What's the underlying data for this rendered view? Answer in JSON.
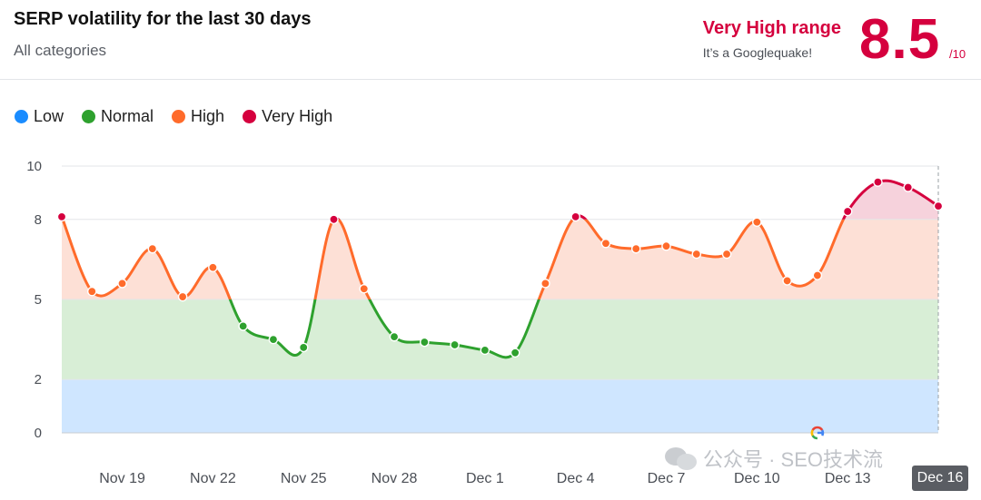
{
  "header": {
    "title": "SERP volatility for the last 30 days",
    "subtitle": "All categories",
    "range_label": "Very High range",
    "range_note": "It’s a Googlequake!",
    "score": "8.5",
    "score_max": "/10"
  },
  "legend": [
    {
      "label": "Low",
      "color": "#1a8cff"
    },
    {
      "label": "Normal",
      "color": "#2ea12e"
    },
    {
      "label": "High",
      "color": "#ff6b2b"
    },
    {
      "label": "Very High",
      "color": "#d5003e"
    }
  ],
  "colors": {
    "low_band": "#cfe6ff",
    "normal_band": "#d8eed6",
    "high_band": "#fde0d6",
    "very_high_band": "#f6d2dc",
    "grid": "#e3e5e8",
    "tick_text": "#4a4e55"
  },
  "chart_data": {
    "type": "line",
    "title": "SERP volatility for the last 30 days",
    "xlabel": "",
    "ylabel": "",
    "ylim": [
      0,
      10
    ],
    "y_ticks": [
      0,
      2,
      5,
      8,
      10
    ],
    "x_ticks": [
      "Nov 19",
      "Nov 22",
      "Nov 25",
      "Nov 28",
      "Dec 1",
      "Dec 4",
      "Dec 7",
      "Dec 10",
      "Dec 13"
    ],
    "x_tick_indices": [
      2,
      5,
      8,
      11,
      14,
      17,
      20,
      23,
      26
    ],
    "selected_date": "Dec 16",
    "bands": [
      {
        "name": "Low",
        "from": 0,
        "to": 2
      },
      {
        "name": "Normal",
        "from": 2,
        "to": 5
      },
      {
        "name": "High",
        "from": 5,
        "to": 8
      },
      {
        "name": "Very High",
        "from": 8,
        "to": 10
      }
    ],
    "series": [
      {
        "x": [
          "Nov 17",
          "Nov 18",
          "Nov 19",
          "Nov 20",
          "Nov 21",
          "Nov 22",
          "Nov 23",
          "Nov 24",
          "Nov 25",
          "Nov 26",
          "Nov 27",
          "Nov 28",
          "Nov 29",
          "Nov 30",
          "Dec 1",
          "Dec 2",
          "Dec 3",
          "Dec 4",
          "Dec 5",
          "Dec 6",
          "Dec 7",
          "Dec 8",
          "Dec 9",
          "Dec 10",
          "Dec 11",
          "Dec 12",
          "Dec 13",
          "Dec 14",
          "Dec 15",
          "Dec 16"
        ],
        "values": [
          8.1,
          5.3,
          5.6,
          6.9,
          5.1,
          6.2,
          4.0,
          3.5,
          3.2,
          8.0,
          5.4,
          3.6,
          3.4,
          3.3,
          3.1,
          3.0,
          5.6,
          8.1,
          7.1,
          6.9,
          7.0,
          6.7,
          6.7,
          7.9,
          5.7,
          5.9,
          8.3,
          9.4,
          9.2,
          8.5
        ]
      }
    ],
    "grid": true,
    "legend_position": "top-left"
  },
  "watermark": {
    "text": "公众号 · SEO技术流"
  },
  "google_marker": {
    "icon": "google-g-icon",
    "date": "Dec 12"
  }
}
